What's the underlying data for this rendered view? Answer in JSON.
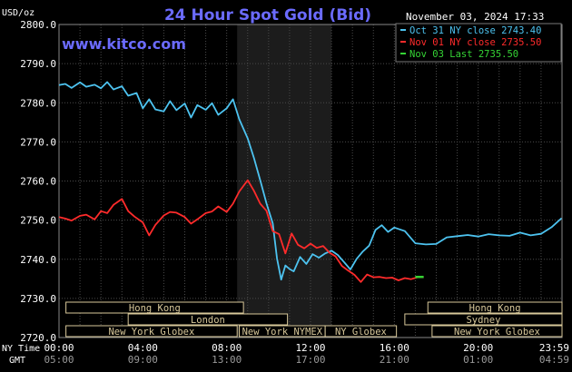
{
  "header": {
    "units": "USD/oz",
    "title": "24 Hour Spot Gold (Bid)",
    "timestamp": "November 03, 2024 17:33",
    "watermark": "www.kitco.com"
  },
  "legend": [
    {
      "label": "Oct 31 NY close 2743.40",
      "color": "#4dc3f0"
    },
    {
      "label": "Nov 01 NY close 2735.50",
      "color": "#ff2b2b"
    },
    {
      "label": "Nov 03 Last 2735.50",
      "color": "#35d435"
    }
  ],
  "sessions": [
    {
      "label": "Hong Kong",
      "row": 0,
      "start": 0.33,
      "end": 8.8
    },
    {
      "label": "Hong Kong",
      "row": 0,
      "start": 17.6,
      "end": 24
    },
    {
      "label": "London",
      "row": 1,
      "start": 3.3,
      "end": 10.9
    },
    {
      "label": "Sydney",
      "row": 1,
      "start": 16.5,
      "end": 24
    },
    {
      "label": "New York Globex",
      "row": 2,
      "start": 0.33,
      "end": 8.5
    },
    {
      "label": "New York NYMEX",
      "row": 2,
      "start": 8.6,
      "end": 12.7
    },
    {
      "label": "NY Globex",
      "row": 2,
      "start": 12.7,
      "end": 16.1
    },
    {
      "label": "New York Globex",
      "row": 2,
      "start": 17.8,
      "end": 24
    }
  ],
  "time_labels": {
    "ny_label": "NY Time",
    "gmt_label": "GMT",
    "ny": [
      "00:00",
      "04:00",
      "08:00",
      "12:00",
      "16:00",
      "20:00",
      "23:59"
    ],
    "gmt": [
      "05:00",
      "09:00",
      "13:00",
      "17:00",
      "21:00",
      "01:00",
      "04:59"
    ]
  },
  "colors": {
    "background": "#000000",
    "grid": "#4a4a4a",
    "shade": "#1c1c1c",
    "title": "#6b6bff",
    "text": "#ffffff",
    "session_box": "#d8c89a",
    "axis_text": "#ffffff"
  },
  "chart_data": {
    "type": "line",
    "title": "24 Hour Spot Gold (Bid)",
    "ylabel": "USD/oz",
    "xlim": [
      0,
      24
    ],
    "ylim": [
      2720,
      2800
    ],
    "yticks": [
      2720,
      2730,
      2740,
      2750,
      2760,
      2770,
      2780,
      2790,
      2800
    ],
    "ytick_labels": [
      "2720.0",
      "2730.0",
      "2740.0",
      "2750.0",
      "2760.0",
      "2770.0",
      "2780.0",
      "2790.0",
      "2800.0"
    ],
    "xticks": [
      0,
      4,
      8,
      12,
      16,
      20,
      24
    ],
    "shaded_region": [
      8.5,
      13
    ],
    "grid": true,
    "series": [
      {
        "name": "Oct 31 NY close 2743.40",
        "color": "#4dc3f0",
        "x": [
          0,
          0.3,
          0.6,
          1.0,
          1.3,
          1.7,
          2.0,
          2.3,
          2.6,
          3.0,
          3.3,
          3.7,
          4.0,
          4.3,
          4.6,
          5.0,
          5.3,
          5.6,
          6.0,
          6.3,
          6.6,
          7.0,
          7.3,
          7.6,
          8.0,
          8.3,
          8.6,
          9.0,
          9.3,
          9.6,
          9.9,
          10.2,
          10.4,
          10.6,
          10.8,
          11.0,
          11.2,
          11.5,
          11.8,
          12.1,
          12.4,
          12.7,
          13.0,
          13.3,
          13.6,
          13.9,
          14.2,
          14.5,
          14.8,
          15.1,
          15.4,
          15.7,
          16.0,
          16.5,
          17.0,
          17.5,
          18.0,
          18.5,
          19.0,
          19.5,
          20.0,
          20.5,
          21.0,
          21.5,
          22.0,
          22.5,
          23.0,
          23.5,
          23.98
        ],
        "y": [
          2784.5,
          2784.8,
          2783.8,
          2785.2,
          2784.1,
          2784.6,
          2783.7,
          2785.3,
          2783.4,
          2784.2,
          2781.8,
          2782.5,
          2778.6,
          2780.9,
          2778.3,
          2777.8,
          2780.4,
          2778.1,
          2779.8,
          2776.2,
          2779.4,
          2778.2,
          2779.9,
          2776.9,
          2778.6,
          2780.9,
          2775.8,
          2770.9,
          2765.9,
          2760.2,
          2754.3,
          2749.2,
          2740.2,
          2734.8,
          2738.4,
          2737.5,
          2736.9,
          2740.6,
          2738.8,
          2741.3,
          2740.4,
          2741.5,
          2742.2,
          2741.1,
          2739.3,
          2737.4,
          2740.1,
          2742.0,
          2743.5,
          2747.5,
          2748.7,
          2747.0,
          2748.1,
          2747.2,
          2744.1,
          2743.8,
          2743.9,
          2745.6,
          2745.9,
          2746.2,
          2745.8,
          2746.4,
          2746.1,
          2746.0,
          2746.8,
          2746.1,
          2746.5,
          2748.2,
          2750.5
        ]
      },
      {
        "name": "Nov 01 NY close 2735.50",
        "color": "#ff2b2b",
        "x": [
          0,
          0.3,
          0.6,
          1.0,
          1.3,
          1.7,
          2.0,
          2.3,
          2.6,
          3.0,
          3.3,
          3.6,
          4.0,
          4.3,
          4.6,
          5.0,
          5.3,
          5.6,
          6.0,
          6.3,
          6.6,
          7.0,
          7.3,
          7.6,
          8.0,
          8.3,
          8.6,
          9.0,
          9.3,
          9.6,
          9.9,
          10.2,
          10.5,
          10.8,
          11.1,
          11.4,
          11.7,
          12.0,
          12.3,
          12.6,
          12.9,
          13.2,
          13.5,
          13.8,
          14.1,
          14.4,
          14.7,
          15.0,
          15.3,
          15.6,
          15.9,
          16.2,
          16.5,
          16.8,
          17.1,
          17.4
        ],
        "y": [
          2750.8,
          2750.4,
          2749.9,
          2751.1,
          2751.4,
          2750.2,
          2752.3,
          2751.8,
          2753.9,
          2755.4,
          2752.3,
          2750.9,
          2749.4,
          2746.1,
          2748.8,
          2751.2,
          2752.1,
          2751.9,
          2750.8,
          2749.1,
          2750.2,
          2751.8,
          2752.2,
          2753.5,
          2752.1,
          2754.2,
          2757.3,
          2760.2,
          2757.5,
          2754.2,
          2752.4,
          2747.2,
          2746.4,
          2741.5,
          2746.6,
          2743.7,
          2742.8,
          2744.0,
          2742.9,
          2743.4,
          2741.7,
          2740.7,
          2738.3,
          2737.1,
          2736.0,
          2734.2,
          2736.1,
          2735.4,
          2735.5,
          2735.2,
          2735.3,
          2734.6,
          2735.2,
          2734.9,
          2735.4,
          2735.4
        ]
      },
      {
        "name": "Nov 03 Last 2735.50",
        "color": "#35d435",
        "x": [
          17.0,
          17.4
        ],
        "y": [
          2735.5,
          2735.5
        ]
      }
    ]
  }
}
